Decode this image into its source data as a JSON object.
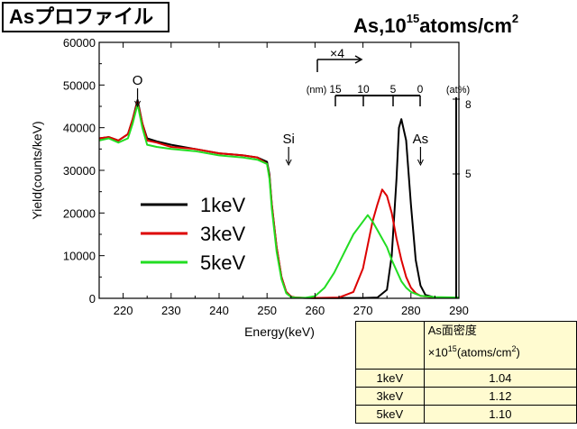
{
  "title": "Asプロファイル",
  "units": {
    "pre": "As,10",
    "exp": "15",
    "mid": "atoms/cm",
    "exp2": "2"
  },
  "chart_data": {
    "type": "line",
    "xlabel": "Energy(keV)",
    "ylabel": "Yield(counts/keV)",
    "xlim": [
      215,
      290
    ],
    "ylim": [
      0,
      60000
    ],
    "xticks": [
      220,
      230,
      240,
      250,
      260,
      270,
      280,
      290
    ],
    "yticks": [
      0,
      10000,
      20000,
      30000,
      40000,
      50000,
      60000
    ],
    "series": [
      {
        "name": "1keV",
        "color": "#000000",
        "x": [
          215,
          217,
          219,
          221,
          222,
          223,
          224,
          225,
          227,
          230,
          235,
          240,
          245,
          248,
          250,
          250.5,
          251,
          252,
          253,
          254,
          255,
          256,
          258,
          260,
          265,
          270,
          273,
          275,
          276,
          277,
          277.5,
          278,
          279,
          280,
          281,
          282,
          283,
          285,
          287,
          290
        ],
        "y": [
          37500,
          37800,
          37000,
          38500,
          42000,
          46500,
          41000,
          37500,
          36800,
          36000,
          35000,
          34000,
          33500,
          33000,
          32000,
          29000,
          22000,
          12000,
          5000,
          1500,
          400,
          150,
          80,
          60,
          60,
          80,
          200,
          2000,
          10000,
          28000,
          40000,
          42000,
          37000,
          22000,
          9000,
          3000,
          800,
          200,
          120,
          100
        ]
      },
      {
        "name": "3keV",
        "color": "#dd0000",
        "x": [
          215,
          217,
          219,
          221,
          222,
          223,
          224,
          225,
          227,
          230,
          235,
          240,
          245,
          248,
          250,
          250.5,
          251,
          252,
          253,
          254,
          255,
          256,
          258,
          260,
          265,
          268,
          270,
          272,
          273,
          274,
          275,
          276,
          277,
          278,
          279,
          280,
          281,
          282,
          285,
          290
        ],
        "y": [
          37500,
          37800,
          37000,
          38500,
          42000,
          46000,
          41000,
          37000,
          36500,
          35500,
          35000,
          34000,
          33500,
          33000,
          31500,
          28500,
          22000,
          12000,
          5000,
          1500,
          400,
          200,
          100,
          80,
          200,
          1500,
          7000,
          18000,
          22000,
          25500,
          24000,
          20000,
          14000,
          9000,
          5000,
          2500,
          1200,
          600,
          200,
          100
        ]
      },
      {
        "name": "5keV",
        "color": "#22dd22",
        "x": [
          215,
          217,
          219,
          221,
          222,
          223,
          224,
          225,
          227,
          230,
          235,
          240,
          245,
          248,
          250,
          250.5,
          251,
          252,
          253,
          254,
          255,
          256,
          258,
          260,
          262,
          264,
          266,
          268,
          270,
          271,
          272,
          273,
          274,
          275,
          276,
          277,
          278,
          279,
          280,
          282,
          285,
          290
        ],
        "y": [
          37000,
          37500,
          36500,
          37500,
          41000,
          45500,
          40000,
          36000,
          35500,
          35000,
          34500,
          33500,
          33000,
          32500,
          31500,
          28000,
          21000,
          11000,
          4500,
          1200,
          300,
          150,
          120,
          500,
          2500,
          6000,
          10500,
          15000,
          18000,
          19500,
          18000,
          16000,
          14000,
          12000,
          9000,
          6500,
          4000,
          2500,
          1500,
          600,
          300,
          200
        ]
      }
    ],
    "legend": {
      "position": "center-left",
      "entries": [
        "1keV",
        "3keV",
        "5keV"
      ]
    },
    "annotations": [
      {
        "text": "O",
        "x": 223
      },
      {
        "text": "Si",
        "x": 254.5
      },
      {
        "text": "As",
        "x": 282
      }
    ],
    "depth_scale": {
      "unit_label": "(nm)",
      "labels": [
        "15",
        "10",
        "5",
        "0"
      ],
      "magnification": "×4"
    },
    "conc_scale": {
      "unit_label": "(at%)",
      "labels": [
        "8",
        "5"
      ]
    }
  },
  "table": {
    "header": {
      "line1": "As面密度",
      "line2_pre": "×10",
      "line2_exp": "15",
      "line2_mid": "(atoms/cm",
      "line2_exp2": "2",
      "line2_post": ")"
    },
    "rows": [
      {
        "label": "1keV",
        "value": "1.04"
      },
      {
        "label": "3keV",
        "value": "1.12"
      },
      {
        "label": "5keV",
        "value": "1.10"
      }
    ]
  }
}
